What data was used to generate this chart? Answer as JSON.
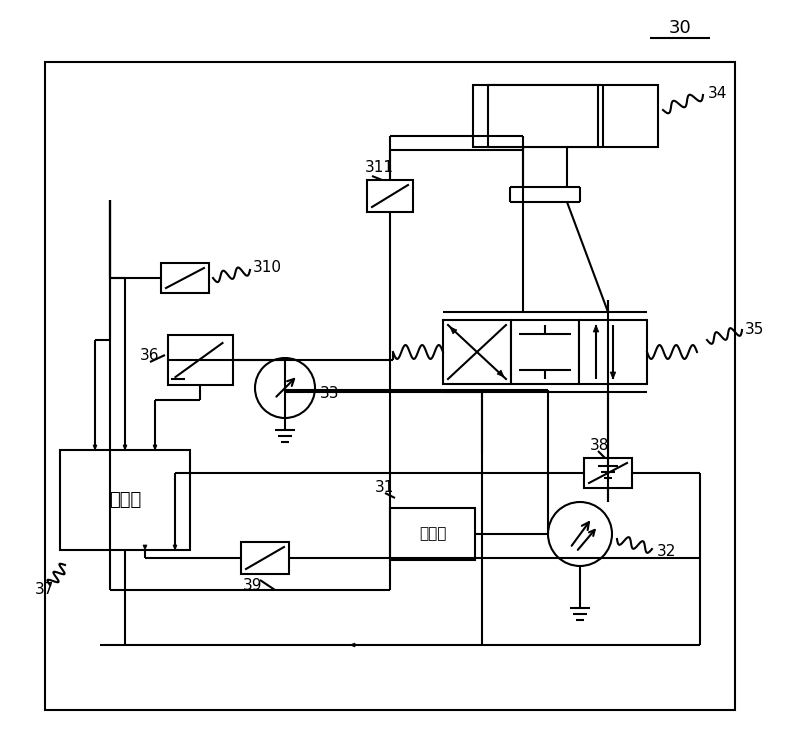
{
  "bg_color": "#ffffff",
  "line_color": "#000000",
  "lw": 1.5
}
